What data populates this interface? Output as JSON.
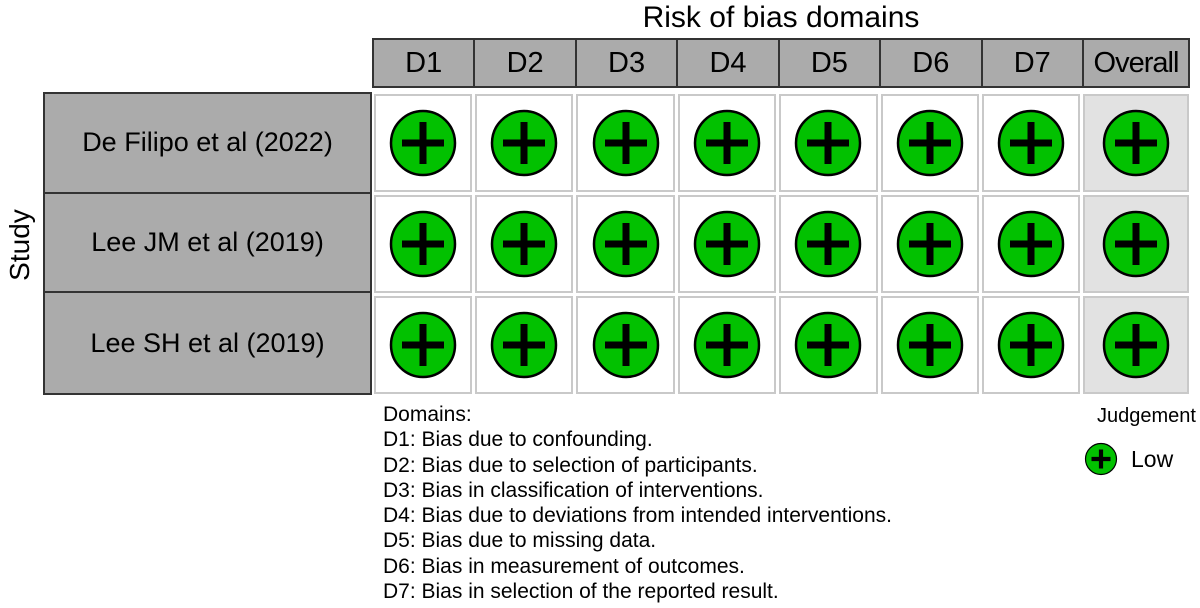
{
  "title": "Risk of bias domains",
  "y_axis_label": "Study",
  "columns": [
    "D1",
    "D2",
    "D3",
    "D4",
    "D5",
    "D6",
    "D7",
    "Overall"
  ],
  "studies": [
    "De Filipo et al (2022)",
    "Lee JM et al (2019)",
    "Lee SH et al (2019)"
  ],
  "judgements": [
    [
      "Low",
      "Low",
      "Low",
      "Low",
      "Low",
      "Low",
      "Low",
      "Low"
    ],
    [
      "Low",
      "Low",
      "Low",
      "Low",
      "Low",
      "Low",
      "Low",
      "Low"
    ],
    [
      "Low",
      "Low",
      "Low",
      "Low",
      "Low",
      "Low",
      "Low",
      "Low"
    ]
  ],
  "footnote": {
    "heading": "Domains:",
    "items": [
      "D1: Bias due to confounding.",
      "D2: Bias due to selection of participants.",
      "D3: Bias in classification of interventions.",
      "D4: Bias due to deviations from intended interventions.",
      "D5: Bias due to missing data.",
      "D6: Bias in measurement of outcomes.",
      "D7: Bias in selection of the reported result."
    ]
  },
  "legend": {
    "title": "Judgement",
    "items": [
      {
        "label": "Low",
        "icon": "plus-circle-icon",
        "color": "#02C100"
      }
    ]
  },
  "colors": {
    "low_green": "#02C100",
    "header_gray": "#ababab",
    "overall_column_bg": "#e2e2e2",
    "grid_border": "#c9c9c9",
    "dark_border": "#333333",
    "text": "#000000"
  },
  "chart_data": {
    "type": "table",
    "title": "Risk of bias domains",
    "row_axis_label": "Study",
    "columns": [
      "D1",
      "D2",
      "D3",
      "D4",
      "D5",
      "D6",
      "D7",
      "Overall"
    ],
    "rows": [
      {
        "study": "De Filipo et al (2022)",
        "values": [
          "Low",
          "Low",
          "Low",
          "Low",
          "Low",
          "Low",
          "Low",
          "Low"
        ]
      },
      {
        "study": "Lee JM et al (2019)",
        "values": [
          "Low",
          "Low",
          "Low",
          "Low",
          "Low",
          "Low",
          "Low",
          "Low"
        ]
      },
      {
        "study": "Lee SH et al (2019)",
        "values": [
          "Low",
          "Low",
          "Low",
          "Low",
          "Low",
          "Low",
          "Low",
          "Low"
        ]
      }
    ],
    "legend": [
      {
        "judgement": "Low",
        "symbol": "green circle with plus sign"
      }
    ],
    "domain_definitions": [
      "D1: Bias due to confounding.",
      "D2: Bias due to selection of participants.",
      "D3: Bias in classification of interventions.",
      "D4: Bias due to deviations from intended interventions.",
      "D5: Bias due to missing data.",
      "D6: Bias in measurement of outcomes.",
      "D7: Bias in selection of the reported result."
    ]
  }
}
